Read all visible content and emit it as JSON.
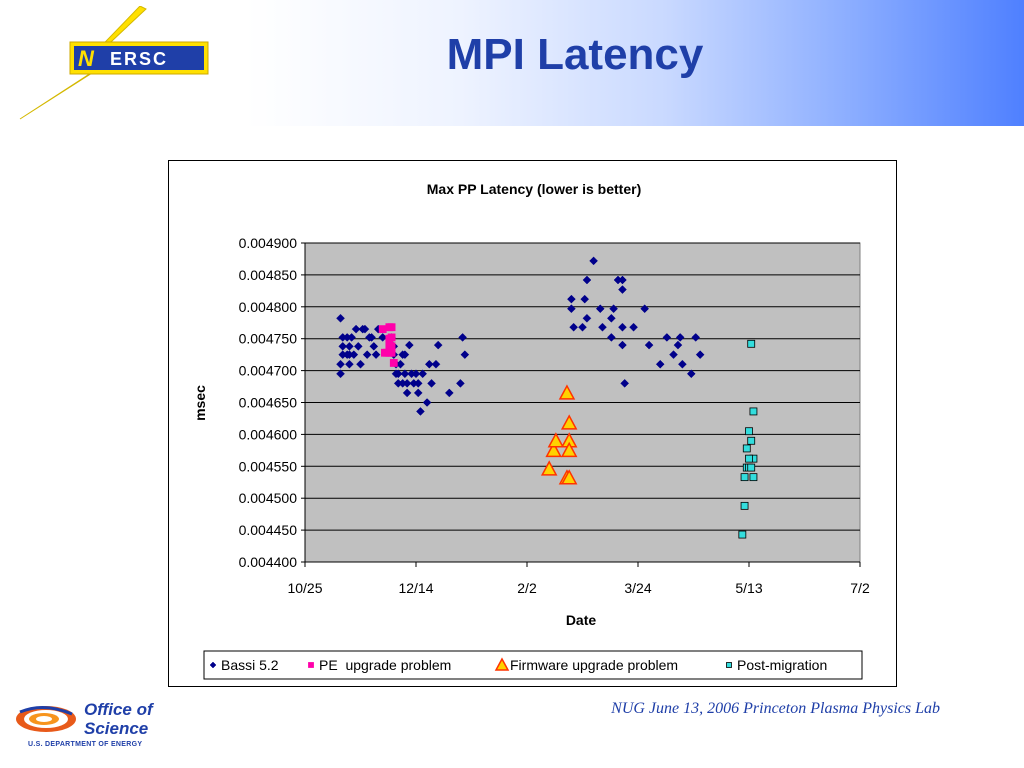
{
  "slide": {
    "title": "MPI Latency",
    "logo_text": "ERSC",
    "logo_initial": "N",
    "footer": "NUG June 13, 2006 Princeton Plasma Physics Lab",
    "office_logo_line1": "Office of",
    "office_logo_line2": "Science",
    "office_logo_line3": "U.S. DEPARTMENT OF ENERGY"
  },
  "colors": {
    "title": "#1f3fa8",
    "plot_bg": "#c0c0c0",
    "bassi": "#00008b",
    "pe": "#ff00aa",
    "firmware_fill": "#ffd200",
    "firmware_edge": "#ff3300",
    "post": "#33dddd"
  },
  "chart_data": {
    "type": "scatter",
    "title": "Max PP Latency (lower is better)",
    "xlabel": "Date",
    "ylabel": "msec",
    "x_tick_labels": [
      "10/25",
      "12/14",
      "2/2",
      "3/24",
      "5/13",
      "7/2"
    ],
    "x_ticks_days": [
      0,
      50,
      100,
      150,
      200,
      250
    ],
    "xlim": [
      0,
      250
    ],
    "ylim": [
      0.0044,
      0.0049
    ],
    "y_ticks": [
      "0.004900",
      "0.004850",
      "0.004800",
      "0.004750",
      "0.004700",
      "0.004650",
      "0.004600",
      "0.004550",
      "0.004500",
      "0.004450",
      "0.004400"
    ],
    "grid": true,
    "legend_position": "bottom",
    "series": [
      {
        "name": "Bassi 5.2",
        "marker": "diamond",
        "points": [
          [
            16,
            0.004782
          ],
          [
            16,
            0.004695
          ],
          [
            16,
            0.00471
          ],
          [
            17,
            0.004752
          ],
          [
            17,
            0.004738
          ],
          [
            17,
            0.004725
          ],
          [
            19,
            0.004725
          ],
          [
            19,
            0.004752
          ],
          [
            20,
            0.004738
          ],
          [
            20,
            0.004725
          ],
          [
            20,
            0.00471
          ],
          [
            21,
            0.004752
          ],
          [
            22,
            0.004725
          ],
          [
            23,
            0.004765
          ],
          [
            24,
            0.004738
          ],
          [
            25,
            0.00471
          ],
          [
            26,
            0.004765
          ],
          [
            27,
            0.004765
          ],
          [
            28,
            0.004725
          ],
          [
            29,
            0.004752
          ],
          [
            30,
            0.004752
          ],
          [
            31,
            0.004738
          ],
          [
            32,
            0.004725
          ],
          [
            33,
            0.004765
          ],
          [
            35,
            0.004752
          ],
          [
            39,
            0.004752
          ],
          [
            40,
            0.004738
          ],
          [
            40,
            0.004725
          ],
          [
            41,
            0.00471
          ],
          [
            41,
            0.004695
          ],
          [
            42,
            0.00468
          ],
          [
            42,
            0.004695
          ],
          [
            43,
            0.00471
          ],
          [
            44,
            0.00468
          ],
          [
            44,
            0.004725
          ],
          [
            45,
            0.004695
          ],
          [
            45,
            0.004725
          ],
          [
            46,
            0.004665
          ],
          [
            46,
            0.00468
          ],
          [
            47,
            0.00474
          ],
          [
            48,
            0.004695
          ],
          [
            49,
            0.00468
          ],
          [
            50,
            0.004695
          ],
          [
            51,
            0.004665
          ],
          [
            51,
            0.00468
          ],
          [
            52,
            0.004636
          ],
          [
            53,
            0.004695
          ],
          [
            55,
            0.00465
          ],
          [
            56,
            0.00471
          ],
          [
            57,
            0.00468
          ],
          [
            59,
            0.00471
          ],
          [
            60,
            0.00474
          ],
          [
            65,
            0.004665
          ],
          [
            70,
            0.00468
          ],
          [
            71,
            0.004752
          ],
          [
            72,
            0.004725
          ],
          [
            120,
            0.004812
          ],
          [
            120,
            0.004797
          ],
          [
            121,
            0.004768
          ],
          [
            125,
            0.004768
          ],
          [
            126,
            0.004812
          ],
          [
            127,
            0.004842
          ],
          [
            127,
            0.004782
          ],
          [
            130,
            0.004872
          ],
          [
            133,
            0.004797
          ],
          [
            134,
            0.004768
          ],
          [
            138,
            0.004752
          ],
          [
            138,
            0.004782
          ],
          [
            139,
            0.004797
          ],
          [
            141,
            0.004842
          ],
          [
            143,
            0.004842
          ],
          [
            143,
            0.004827
          ],
          [
            143,
            0.00474
          ],
          [
            143,
            0.004768
          ],
          [
            144,
            0.00468
          ],
          [
            148,
            0.004768
          ],
          [
            153,
            0.004797
          ],
          [
            155,
            0.00474
          ],
          [
            160,
            0.00471
          ],
          [
            163,
            0.004752
          ],
          [
            166,
            0.004725
          ],
          [
            168,
            0.00474
          ],
          [
            169,
            0.004752
          ],
          [
            170,
            0.00471
          ],
          [
            174,
            0.004695
          ],
          [
            176,
            0.004752
          ],
          [
            178,
            0.004725
          ]
        ]
      },
      {
        "name": "PE  upgrade problem",
        "marker": "square",
        "points": [
          [
            35,
            0.004765
          ],
          [
            36,
            0.004728
          ],
          [
            37,
            0.004728
          ],
          [
            38,
            0.004768
          ],
          [
            38,
            0.00475
          ],
          [
            38,
            0.00474
          ],
          [
            38,
            0.004728
          ],
          [
            39,
            0.004768
          ],
          [
            39,
            0.004752
          ],
          [
            39,
            0.004738
          ],
          [
            39,
            0.004728
          ],
          [
            40,
            0.004712
          ]
        ]
      },
      {
        "name": "Firmware upgrade problem",
        "marker": "triangle",
        "points": [
          [
            110,
            0.004546
          ],
          [
            112,
            0.004575
          ],
          [
            113,
            0.00459
          ],
          [
            118,
            0.004665
          ],
          [
            119,
            0.004618
          ],
          [
            119,
            0.00459
          ],
          [
            119,
            0.004575
          ],
          [
            118,
            0.004532
          ],
          [
            119,
            0.004532
          ]
        ]
      },
      {
        "name": "Post-migration",
        "marker": "square",
        "points": [
          [
            201,
            0.004742
          ],
          [
            202,
            0.004636
          ],
          [
            200,
            0.004605
          ],
          [
            201,
            0.00459
          ],
          [
            199,
            0.004578
          ],
          [
            202,
            0.004562
          ],
          [
            200,
            0.004562
          ],
          [
            199,
            0.004548
          ],
          [
            200,
            0.004548
          ],
          [
            201,
            0.004548
          ],
          [
            198,
            0.004533
          ],
          [
            202,
            0.004533
          ],
          [
            198,
            0.004488
          ],
          [
            197,
            0.004443
          ]
        ]
      }
    ]
  }
}
